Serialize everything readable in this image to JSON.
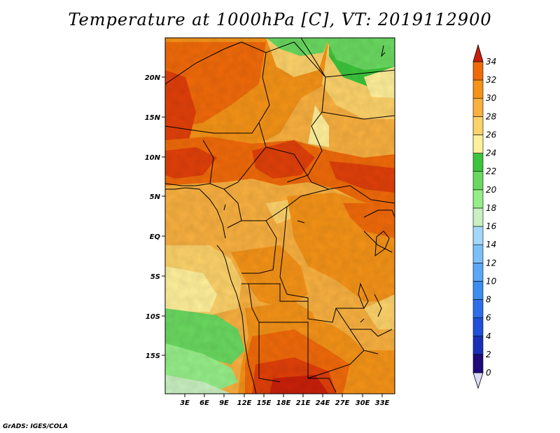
{
  "title": "Temperature at 1000hPa [C], VT: 2019112900",
  "credit": "GrADS: IGES/COLA",
  "map": {
    "lat_labels": [
      "20N",
      "15N",
      "10N",
      "5N",
      "EQ",
      "5S",
      "10S",
      "15S"
    ],
    "lon_labels": [
      "3E",
      "6E",
      "9E",
      "12E",
      "15E",
      "18E",
      "21E",
      "24E",
      "27E",
      "30E",
      "33E"
    ]
  },
  "colorbar": {
    "levels": [
      "0",
      "2",
      "4",
      "6",
      "8",
      "10",
      "12",
      "14",
      "16",
      "18",
      "20",
      "22",
      "24",
      "26",
      "28",
      "30",
      "32",
      "34"
    ],
    "colors": [
      "#1e0a78",
      "#1a2fb8",
      "#2050d8",
      "#2f6ee8",
      "#3c8df0",
      "#5aa7f5",
      "#7cc0f8",
      "#a4d8fb",
      "#c8f0c0",
      "#96ee88",
      "#6ad860",
      "#3cc43c",
      "#fff09a",
      "#fcd26a",
      "#f8b040",
      "#f49318",
      "#f06a0a",
      "#e0400a",
      "#c8200a"
    ]
  },
  "colors": {
    "border": "#000000",
    "frame": "#000000"
  }
}
